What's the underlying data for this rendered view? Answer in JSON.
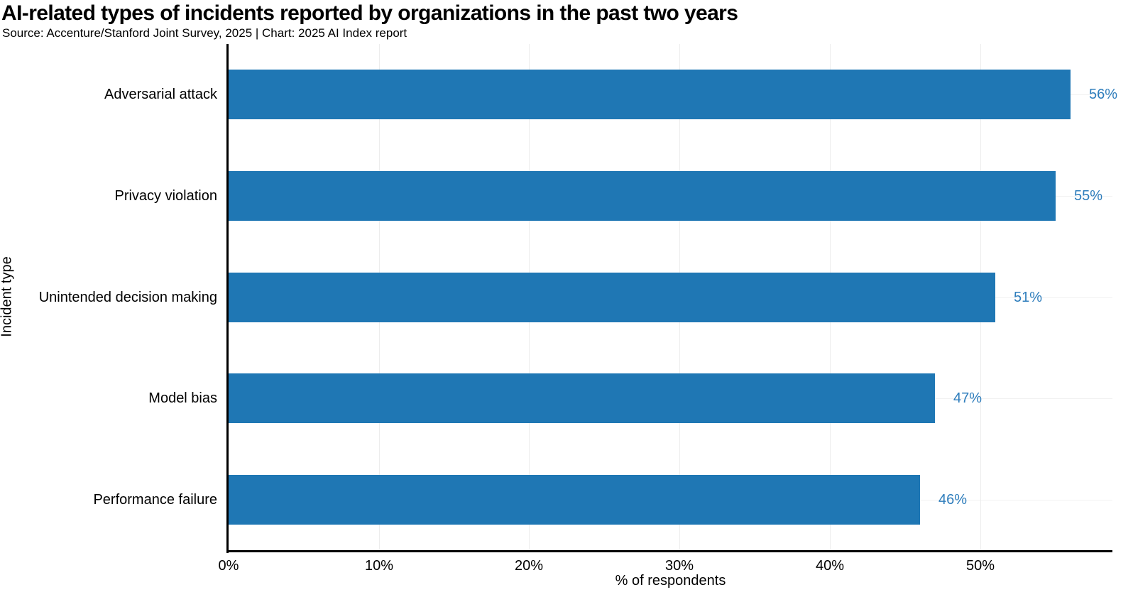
{
  "header": {
    "title": "AI-related types of incidents reported by organizations in the past two years",
    "subtitle": "Source: Accenture/Stanford Joint Survey, 2025 | Chart: 2025 AI Index report"
  },
  "chart_data": {
    "type": "bar",
    "orientation": "horizontal",
    "title": "AI-related types of incidents reported by organizations in the past two years",
    "subtitle": "Source: Accenture/Stanford Joint Survey, 2025 | Chart: 2025 AI Index report",
    "categories": [
      "Adversarial attack",
      "Privacy violation",
      "Unintended decision making",
      "Model bias",
      "Performance failure"
    ],
    "values": [
      56,
      55,
      51,
      47,
      46
    ],
    "value_labels": [
      "56%",
      "55%",
      "51%",
      "47%",
      "46%"
    ],
    "xlabel": "% of respondents",
    "ylabel": "Incident type",
    "xlim": [
      0,
      58.8
    ],
    "x_ticks": [
      0,
      10,
      20,
      30,
      40,
      50
    ],
    "x_tick_labels": [
      "0%",
      "10%",
      "20%",
      "30%",
      "40%",
      "50%"
    ],
    "grid": true,
    "legend": "none",
    "bar_color": "#1f77b4",
    "value_label_color": "#2e7dbc",
    "axis_color": "#000000",
    "grid_color": "#ededed"
  }
}
